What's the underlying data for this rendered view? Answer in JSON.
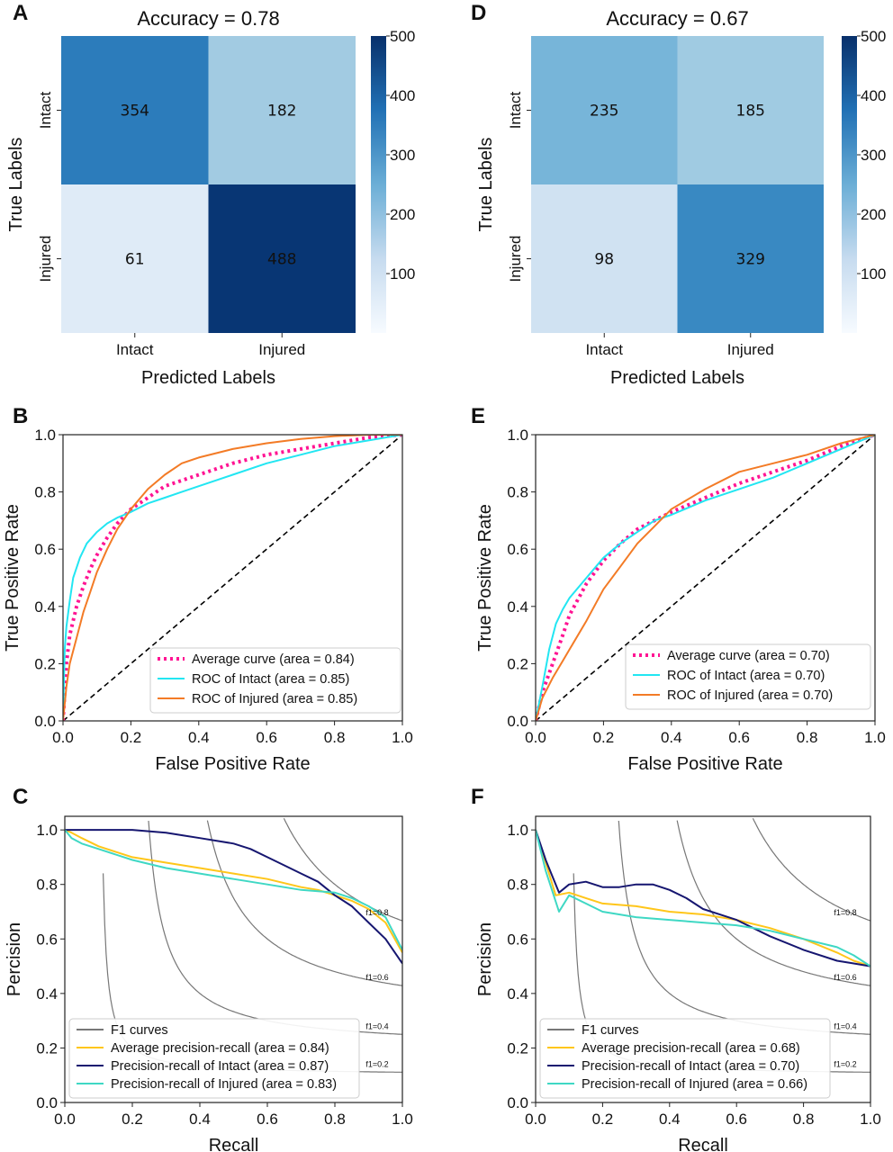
{
  "panel_letters": [
    "A",
    "D",
    "B",
    "E",
    "C",
    "F"
  ],
  "chart_data": [
    {
      "panel": "A",
      "type": "heatmap",
      "title": "Accuracy = 0.78",
      "xlabel": "Predicted Labels",
      "ylabel": "True Labels",
      "x_categories": [
        "Intact",
        "Injured"
      ],
      "y_categories": [
        "Intact",
        "Injured"
      ],
      "values": [
        [
          354,
          182
        ],
        [
          61,
          488
        ]
      ],
      "colorbar": {
        "min": 0,
        "max": 500,
        "ticks": [
          "100",
          "200",
          "300",
          "400",
          "500"
        ]
      }
    },
    {
      "panel": "D",
      "type": "heatmap",
      "title": "Accuracy = 0.67",
      "xlabel": "Predicted Labels",
      "ylabel": "True Labels",
      "x_categories": [
        "Intact",
        "Injured"
      ],
      "y_categories": [
        "Intact",
        "Injured"
      ],
      "values": [
        [
          235,
          185
        ],
        [
          98,
          329
        ]
      ],
      "colorbar": {
        "min": 0,
        "max": 500,
        "ticks": [
          "100",
          "200",
          "300",
          "400",
          "500"
        ]
      }
    },
    {
      "panel": "B",
      "type": "line",
      "xlabel": "False Positive Rate",
      "ylabel": "True Positive Rate",
      "xlim": [
        0,
        1
      ],
      "ylim": [
        0,
        1
      ],
      "xticks": [
        "0.0",
        "0.2",
        "0.4",
        "0.6",
        "0.8",
        "1.0"
      ],
      "yticks": [
        "0.0",
        "0.2",
        "0.4",
        "0.6",
        "0.8",
        "1.0"
      ],
      "legend_position": "bottom-right",
      "diagonal": true,
      "series": [
        {
          "name": "Average curve (area = 0.84)",
          "color": "#ff1493",
          "style": "dotted",
          "x": [
            0,
            0.01,
            0.02,
            0.04,
            0.06,
            0.08,
            0.1,
            0.13,
            0.16,
            0.2,
            0.25,
            0.3,
            0.4,
            0.5,
            0.6,
            0.7,
            0.8,
            0.9,
            0.95,
            1.0
          ],
          "y": [
            0,
            0.2,
            0.3,
            0.4,
            0.47,
            0.53,
            0.58,
            0.64,
            0.69,
            0.74,
            0.78,
            0.82,
            0.86,
            0.9,
            0.93,
            0.95,
            0.97,
            0.99,
            0.995,
            1.0
          ]
        },
        {
          "name": "ROC of Intact (area = 0.85)",
          "color": "#22e6f2",
          "style": "solid",
          "x": [
            0,
            0.005,
            0.01,
            0.02,
            0.03,
            0.05,
            0.07,
            0.1,
            0.13,
            0.16,
            0.2,
            0.25,
            0.3,
            0.35,
            0.4,
            0.5,
            0.6,
            0.7,
            0.8,
            0.9,
            1.0
          ],
          "y": [
            0,
            0.25,
            0.33,
            0.42,
            0.5,
            0.57,
            0.62,
            0.66,
            0.69,
            0.71,
            0.73,
            0.76,
            0.78,
            0.8,
            0.82,
            0.86,
            0.9,
            0.93,
            0.96,
            0.98,
            1.0
          ]
        },
        {
          "name": "ROC of Injured (area = 0.85)",
          "color": "#f37b26",
          "style": "solid",
          "x": [
            0,
            0.01,
            0.02,
            0.04,
            0.06,
            0.08,
            0.1,
            0.13,
            0.16,
            0.2,
            0.25,
            0.3,
            0.35,
            0.4,
            0.5,
            0.6,
            0.7,
            0.8,
            0.9,
            1.0
          ],
          "y": [
            0,
            0.12,
            0.2,
            0.29,
            0.38,
            0.45,
            0.52,
            0.6,
            0.67,
            0.74,
            0.81,
            0.86,
            0.9,
            0.92,
            0.95,
            0.97,
            0.985,
            0.995,
            1.0,
            1.0
          ]
        }
      ]
    },
    {
      "panel": "E",
      "type": "line",
      "xlabel": "False Positive Rate",
      "ylabel": "True Positive Rate",
      "xlim": [
        0,
        1
      ],
      "ylim": [
        0,
        1
      ],
      "xticks": [
        "0.0",
        "0.2",
        "0.4",
        "0.6",
        "0.8",
        "1.0"
      ],
      "yticks": [
        "0.0",
        "0.2",
        "0.4",
        "0.6",
        "0.8",
        "1.0"
      ],
      "legend_position": "bottom-right",
      "diagonal": true,
      "series": [
        {
          "name": "Average curve (area = 0.70)",
          "color": "#ff1493",
          "style": "dotted",
          "x": [
            0,
            0.02,
            0.05,
            0.08,
            0.1,
            0.15,
            0.2,
            0.25,
            0.3,
            0.4,
            0.5,
            0.6,
            0.7,
            0.8,
            0.9,
            1.0
          ],
          "y": [
            0,
            0.1,
            0.2,
            0.3,
            0.37,
            0.48,
            0.56,
            0.62,
            0.67,
            0.73,
            0.78,
            0.83,
            0.87,
            0.91,
            0.96,
            1.0
          ]
        },
        {
          "name": "ROC of Intact (area = 0.70)",
          "color": "#22e6f2",
          "style": "solid",
          "x": [
            0,
            0.02,
            0.04,
            0.06,
            0.08,
            0.1,
            0.15,
            0.2,
            0.25,
            0.3,
            0.35,
            0.4,
            0.5,
            0.6,
            0.7,
            0.8,
            0.9,
            1.0
          ],
          "y": [
            0,
            0.12,
            0.25,
            0.34,
            0.39,
            0.43,
            0.5,
            0.57,
            0.62,
            0.66,
            0.7,
            0.72,
            0.77,
            0.81,
            0.85,
            0.9,
            0.95,
            1.0
          ]
        },
        {
          "name": "ROC of Injured (area = 0.70)",
          "color": "#f37b26",
          "style": "solid",
          "x": [
            0,
            0.02,
            0.05,
            0.08,
            0.1,
            0.15,
            0.2,
            0.25,
            0.3,
            0.35,
            0.4,
            0.5,
            0.6,
            0.7,
            0.8,
            0.9,
            1.0
          ],
          "y": [
            0,
            0.08,
            0.15,
            0.21,
            0.25,
            0.35,
            0.46,
            0.54,
            0.62,
            0.68,
            0.74,
            0.81,
            0.87,
            0.9,
            0.93,
            0.97,
            1.0
          ]
        }
      ]
    },
    {
      "panel": "C",
      "type": "line",
      "xlabel": "Recall",
      "ylabel": "Percision",
      "xlim": [
        0,
        1
      ],
      "ylim": [
        0,
        1.05
      ],
      "xticks": [
        "0.0",
        "0.2",
        "0.4",
        "0.6",
        "0.8",
        "1.0"
      ],
      "yticks": [
        "0.0",
        "0.2",
        "0.4",
        "0.6",
        "0.8",
        "1.0"
      ],
      "legend_position": "bottom-left",
      "iso_f1": [
        0.2,
        0.4,
        0.6,
        0.8
      ],
      "iso_f1_labels": [
        "f1=0.2",
        "f1=0.4",
        "f1=0.6",
        "f1=0.8"
      ],
      "series": [
        {
          "name": "F1 curves",
          "color": "#777777",
          "style": "solid",
          "x": [],
          "y": []
        },
        {
          "name": "Average precision-recall (area = 0.84)",
          "color": "#ffc61a",
          "style": "solid",
          "x": [
            0,
            0.02,
            0.05,
            0.1,
            0.15,
            0.2,
            0.3,
            0.4,
            0.5,
            0.6,
            0.7,
            0.75,
            0.8,
            0.85,
            0.9,
            0.95,
            1.0
          ],
          "y": [
            1.0,
            0.99,
            0.97,
            0.94,
            0.92,
            0.9,
            0.88,
            0.86,
            0.84,
            0.82,
            0.79,
            0.78,
            0.76,
            0.74,
            0.71,
            0.66,
            0.55
          ]
        },
        {
          "name": "Precision-recall of Intact (area = 0.87)",
          "color": "#161670",
          "style": "solid",
          "x": [
            0,
            0.05,
            0.1,
            0.2,
            0.3,
            0.35,
            0.4,
            0.5,
            0.55,
            0.6,
            0.65,
            0.7,
            0.75,
            0.8,
            0.85,
            0.9,
            0.95,
            1.0
          ],
          "y": [
            1.0,
            1.0,
            1.0,
            1.0,
            0.99,
            0.98,
            0.97,
            0.95,
            0.93,
            0.9,
            0.87,
            0.84,
            0.81,
            0.76,
            0.72,
            0.66,
            0.6,
            0.51
          ]
        },
        {
          "name": "Precision-recall of Injured (area = 0.83)",
          "color": "#3fd8c4",
          "style": "solid",
          "x": [
            0,
            0.02,
            0.05,
            0.1,
            0.2,
            0.3,
            0.4,
            0.5,
            0.6,
            0.7,
            0.8,
            0.85,
            0.9,
            0.95,
            1.0
          ],
          "y": [
            1.0,
            0.97,
            0.95,
            0.93,
            0.89,
            0.86,
            0.84,
            0.82,
            0.8,
            0.78,
            0.77,
            0.75,
            0.72,
            0.68,
            0.56
          ]
        }
      ]
    },
    {
      "panel": "F",
      "type": "line",
      "xlabel": "Recall",
      "ylabel": "Percision",
      "xlim": [
        0,
        1
      ],
      "ylim": [
        0,
        1.05
      ],
      "xticks": [
        "0.0",
        "0.2",
        "0.4",
        "0.6",
        "0.8",
        "1.0"
      ],
      "yticks": [
        "0.0",
        "0.2",
        "0.4",
        "0.6",
        "0.8",
        "1.0"
      ],
      "legend_position": "bottom-left",
      "iso_f1": [
        0.2,
        0.4,
        0.6,
        0.8
      ],
      "iso_f1_labels": [
        "f1=0.2",
        "f1=0.4",
        "f1=0.6",
        "f1=0.8"
      ],
      "series": [
        {
          "name": "F1 curves",
          "color": "#777777",
          "style": "solid",
          "x": [],
          "y": []
        },
        {
          "name": "Average precision-recall (area = 0.68)",
          "color": "#ffc61a",
          "style": "solid",
          "x": [
            0,
            0.03,
            0.06,
            0.1,
            0.15,
            0.2,
            0.3,
            0.4,
            0.5,
            0.6,
            0.7,
            0.8,
            0.9,
            0.95,
            1.0
          ],
          "y": [
            1.0,
            0.88,
            0.76,
            0.77,
            0.75,
            0.73,
            0.72,
            0.7,
            0.69,
            0.67,
            0.64,
            0.6,
            0.55,
            0.52,
            0.5
          ]
        },
        {
          "name": "Precision-recall of Intact (area = 0.70)",
          "color": "#161670",
          "style": "solid",
          "x": [
            0,
            0.03,
            0.07,
            0.1,
            0.15,
            0.2,
            0.25,
            0.3,
            0.35,
            0.4,
            0.45,
            0.5,
            0.6,
            0.7,
            0.8,
            0.9,
            0.95,
            1.0
          ],
          "y": [
            1.0,
            0.89,
            0.77,
            0.8,
            0.81,
            0.79,
            0.79,
            0.8,
            0.8,
            0.78,
            0.75,
            0.71,
            0.67,
            0.61,
            0.56,
            0.52,
            0.51,
            0.5
          ]
        },
        {
          "name": "Precision-recall of Injured (area = 0.66)",
          "color": "#3fd8c4",
          "style": "solid",
          "x": [
            0,
            0.03,
            0.07,
            0.1,
            0.15,
            0.2,
            0.3,
            0.4,
            0.5,
            0.6,
            0.7,
            0.8,
            0.9,
            0.95,
            1.0
          ],
          "y": [
            1.0,
            0.85,
            0.7,
            0.76,
            0.73,
            0.7,
            0.68,
            0.67,
            0.66,
            0.65,
            0.63,
            0.6,
            0.57,
            0.54,
            0.5
          ]
        }
      ]
    }
  ]
}
